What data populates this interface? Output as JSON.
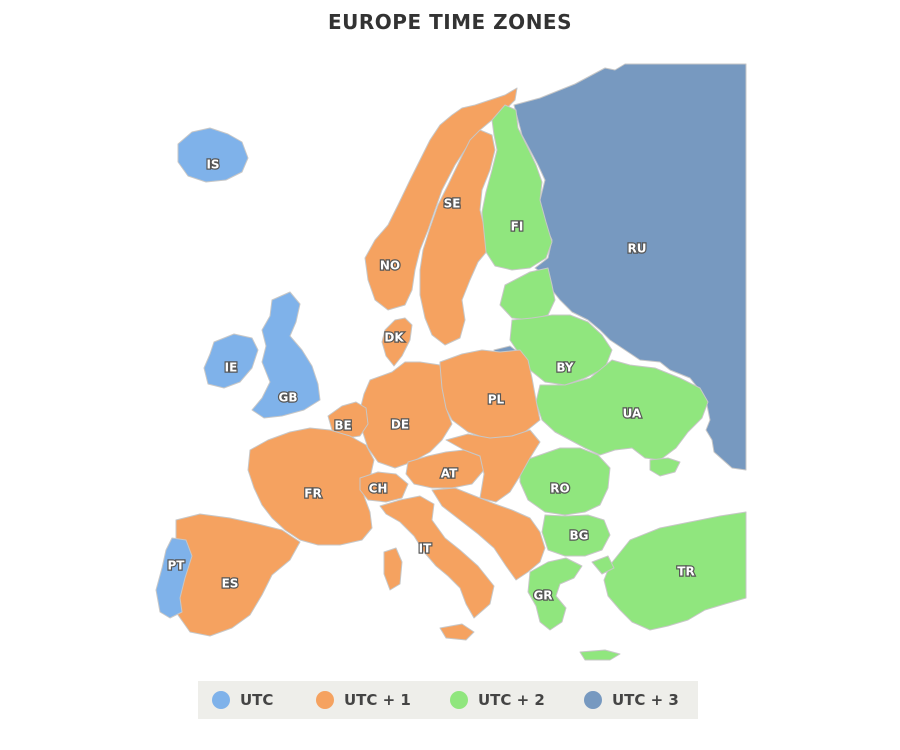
{
  "title": "EUROPE TIME ZONES",
  "colors": {
    "utc": "#7fb2ea",
    "utc1": "#f5a260",
    "utc2": "#90e67e",
    "utc3": "#7799c0",
    "border": "#c7c7c7"
  },
  "zones": [
    {
      "id": "utc",
      "label": "UTC"
    },
    {
      "id": "utc1",
      "label": "UTC + 1"
    },
    {
      "id": "utc2",
      "label": "UTC + 2"
    },
    {
      "id": "utc3",
      "label": "UTC + 3"
    }
  ],
  "countries": [
    {
      "code": "IS",
      "zone": "utc"
    },
    {
      "code": "IE",
      "zone": "utc"
    },
    {
      "code": "GB",
      "zone": "utc"
    },
    {
      "code": "PT",
      "zone": "utc"
    },
    {
      "code": "NO",
      "zone": "utc1"
    },
    {
      "code": "SE",
      "zone": "utc1"
    },
    {
      "code": "DK",
      "zone": "utc1"
    },
    {
      "code": "BE",
      "zone": "utc1"
    },
    {
      "code": "DE",
      "zone": "utc1"
    },
    {
      "code": "PL",
      "zone": "utc1"
    },
    {
      "code": "FR",
      "zone": "utc1"
    },
    {
      "code": "CH",
      "zone": "utc1"
    },
    {
      "code": "AT",
      "zone": "utc1"
    },
    {
      "code": "IT",
      "zone": "utc1"
    },
    {
      "code": "ES",
      "zone": "utc1"
    },
    {
      "code": "FI",
      "zone": "utc2"
    },
    {
      "code": "BY",
      "zone": "utc2"
    },
    {
      "code": "UA",
      "zone": "utc2"
    },
    {
      "code": "RO",
      "zone": "utc2"
    },
    {
      "code": "BG",
      "zone": "utc2"
    },
    {
      "code": "GR",
      "zone": "utc2"
    },
    {
      "code": "TR",
      "zone": "utc2"
    },
    {
      "code": "RU",
      "zone": "utc3"
    }
  ]
}
